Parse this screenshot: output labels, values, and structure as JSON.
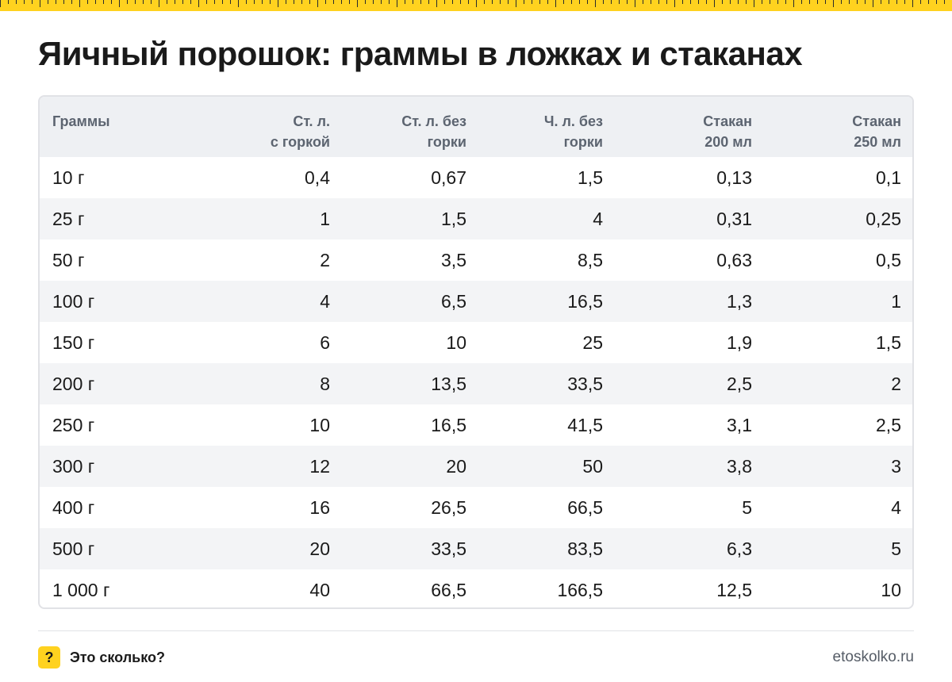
{
  "title": "Яичный порошок: граммы в ложках и стаканах",
  "table": {
    "headers": [
      [
        "Граммы"
      ],
      [
        "Ст. л.",
        "с горкой"
      ],
      [
        "Ст. л. без",
        "горки"
      ],
      [
        "Ч. л. без",
        "горки"
      ],
      [
        "Стакан",
        "200 мл"
      ],
      [
        "Стакан",
        "250 мл"
      ]
    ],
    "rows": [
      [
        "10 г",
        "0,4",
        "0,67",
        "1,5",
        "0,13",
        "0,1"
      ],
      [
        "25 г",
        "1",
        "1,5",
        "4",
        "0,31",
        "0,25"
      ],
      [
        "50 г",
        "2",
        "3,5",
        "8,5",
        "0,63",
        "0,5"
      ],
      [
        "100 г",
        "4",
        "6,5",
        "16,5",
        "1,3",
        "1"
      ],
      [
        "150 г",
        "6",
        "10",
        "25",
        "1,9",
        "1,5"
      ],
      [
        "200 г",
        "8",
        "13,5",
        "33,5",
        "2,5",
        "2"
      ],
      [
        "250 г",
        "10",
        "16,5",
        "41,5",
        "3,1",
        "2,5"
      ],
      [
        "300 г",
        "12",
        "20",
        "50",
        "3,8",
        "3"
      ],
      [
        "400 г",
        "16",
        "26,5",
        "66,5",
        "5",
        "4"
      ],
      [
        "500 г",
        "20",
        "33,5",
        "83,5",
        "6,3",
        "5"
      ],
      [
        "1 000 г",
        "40",
        "66,5",
        "166,5",
        "12,5",
        "10"
      ]
    ]
  },
  "footer": {
    "icon": "question-mark-icon",
    "icon_glyph": "?",
    "brand": "Это сколько?",
    "site": "etoskolko.ru"
  },
  "colors": {
    "accent": "#ffd21f",
    "header_bg": "#eef0f3",
    "stripe_bg": "#f3f4f6",
    "border": "#e1e2e6"
  }
}
